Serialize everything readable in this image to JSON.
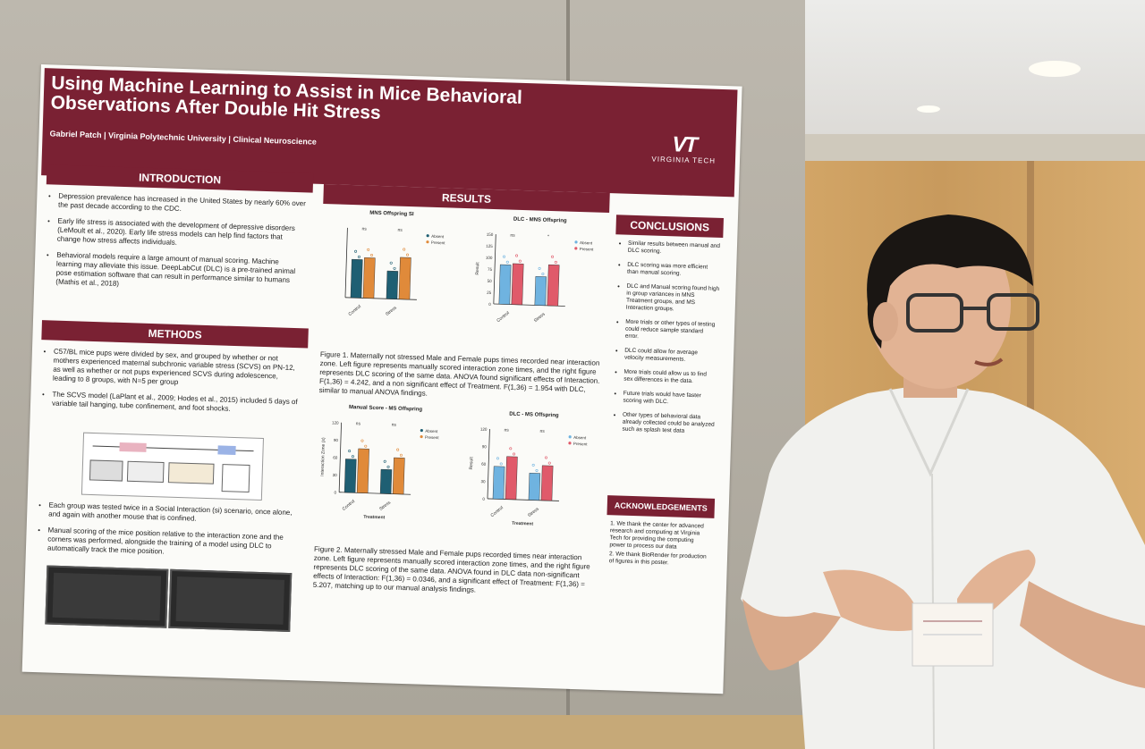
{
  "poster": {
    "title": "Using Machine Learning to Assist in Mice Behavioral Observations After Double Hit Stress",
    "author": "Gabriel Patch | Virginia Polytechnic University | Clinical Neuroscience",
    "logo_mark": "VT",
    "logo_text": "VIRGINIA TECH",
    "introduction": {
      "heading": "INTRODUCTION",
      "bullets": [
        "Depression prevalence has increased in the United States by nearly 60% over the past decade according to the CDC.",
        "Early life stress is associated with the development of depressive disorders (LeMoult et al., 2020). Early life stress models can help find factors that change how stress affects individuals.",
        "Behavioral models require a large amount of manual scoring. Machine learning may alleviate this issue. DeepLabCut (DLC) is a pre-trained animal pose estimation software that can result in performance similar to humans (Mathis et al., 2018)"
      ]
    },
    "methods": {
      "heading": "METHODS",
      "bullets": [
        "C57/BL mice pups were divided by sex, and grouped by whether or not mothers experienced maternal subchronic variable stress (SCVS) on PN-12, as well as whether or not pups experienced SCVS during adolescence, leading to 8 groups, with N=5 per group",
        "The SCVS model (LaPlant et al., 2009; Hodes et al., 2015) included 5 days of variable tail hanging, tube confinement, and foot shocks.",
        "Each group was tested twice in a Social Interaction (si) scenario, once alone, and again with another mouse that is confined.",
        "Manual scoring of the mice position relative to the interaction zone and the corners was performed, alongside the training of a model using DLC to automatically track the mice position."
      ]
    },
    "results": {
      "heading": "RESULTS",
      "figure1_caption": "Figure 1. Maternally not stressed Male and Female pups times recorded near interaction zone. Left figure represents manually scored interaction zone times, and the right figure represents DLC scoring of the same data. ANOVA found significant effects of Interaction. F(1,36) = 4.242, and a non significant effect of Treatment. F(1,36) = 1.954 with DLC, similar to manual ANOVA findings.",
      "figure2_caption": "Figure 2. Maternally stressed Male and Female pups recorded times near interaction zone. Left figure represents manually scored interaction zone times, and the right figure represents DLC scoring of the same data. ANOVA found in DLC data non-significant effects of Interaction: F(1,36) = 0.0346, and a significant effect of Treatment: F(1,36) = 5.207, matching up to our manual analysis findings."
    },
    "conclusions": {
      "heading": "CONCLUSIONS",
      "bullets": [
        "Similar results between manual and DLC scoring.",
        "DLC scoring was more efficient than manual scoring.",
        "DLC and Manual scoring found high in group variances in MNS Treatment groups, and MS Interaction groups.",
        "More trials or other types of testing could reduce sample standard error.",
        "DLC could allow for average velocity measurements.",
        "More trials could allow us to find sex differences in the data.",
        "Future trials would have faster scoring with DLC.",
        "Other types of behavioral data already collected could be analyzed such as splash test data"
      ]
    },
    "acknowledgements": {
      "heading": "ACKNOWLEDGEMENTS",
      "items": [
        "1. We thank the center for advanced research and computing at Virginia Tech for providing the computing power to process our data",
        "2. We thank BioRender for production of figures in this poster."
      ]
    }
  },
  "chart_data": [
    {
      "type": "bar",
      "title": "MNS Offspring SI",
      "categories": [
        "Control",
        "Stress"
      ],
      "legend": [
        "Absent",
        "Present"
      ],
      "significance": [
        "ns",
        "ns"
      ],
      "series": [
        {
          "name": "Absent",
          "values": [
            55,
            40
          ]
        },
        {
          "name": "Present",
          "values": [
            58,
            60
          ]
        }
      ],
      "colors": [
        "#1f5f73",
        "#e08a3a"
      ],
      "ylim": [
        0,
        100
      ]
    },
    {
      "type": "bar",
      "title": "DLC - MNS Offspring",
      "ylabel": "Result",
      "categories": [
        "Control",
        "Stress"
      ],
      "legend": [
        "Absent",
        "Present"
      ],
      "significance": [
        "ns",
        "*"
      ],
      "ticks": [
        "0",
        "25",
        "50",
        "75",
        "100",
        "125",
        "150"
      ],
      "series": [
        {
          "name": "Absent",
          "values": [
            85,
            62
          ]
        },
        {
          "name": "Present",
          "values": [
            88,
            88
          ]
        }
      ],
      "colors": [
        "#6fb3e0",
        "#e05a6a"
      ],
      "ylim": [
        0,
        150
      ]
    },
    {
      "type": "bar",
      "title": "Manual Score - MS Offspring",
      "ylabel": "Interaction Zone (s)",
      "xlabel": "Treatment",
      "categories": [
        "Control",
        "Stress"
      ],
      "legend": [
        "Absent",
        "Present"
      ],
      "significance": [
        "ns",
        "ns"
      ],
      "ticks": [
        "0",
        "30",
        "60",
        "90",
        "120"
      ],
      "series": [
        {
          "name": "Absent",
          "values": [
            72,
            52
          ]
        },
        {
          "name": "Present",
          "values": [
            95,
            78
          ]
        }
      ],
      "colors": [
        "#1f5f73",
        "#e08a3a"
      ],
      "ylim": [
        0,
        150
      ]
    },
    {
      "type": "bar",
      "title": "DLC - MS Offspring",
      "ylabel": "Result",
      "xlabel": "Treatment",
      "categories": [
        "Control",
        "Stress"
      ],
      "legend": [
        "Absent",
        "Present"
      ],
      "significance": [
        "ns",
        "ns"
      ],
      "ticks": [
        "0",
        "30",
        "60",
        "90",
        "120"
      ],
      "series": [
        {
          "name": "Absent",
          "values": [
            70,
            58
          ]
        },
        {
          "name": "Present",
          "values": [
            92,
            75
          ]
        }
      ],
      "colors": [
        "#6fb3e0",
        "#e05a6a"
      ],
      "ylim": [
        0,
        150
      ]
    }
  ]
}
